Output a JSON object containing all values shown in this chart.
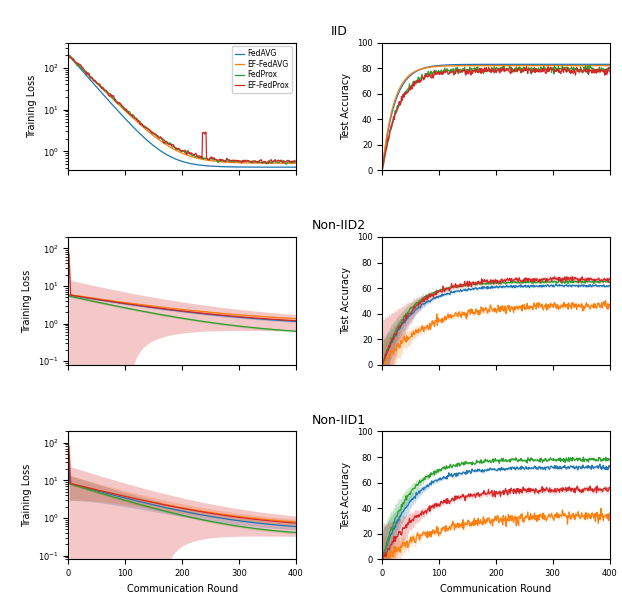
{
  "titles": [
    "IID",
    "Non-IID2",
    "Non-IID1"
  ],
  "legend_labels": [
    "FedAVG",
    "EF-FedAVG",
    "FedProx",
    "EF-FedProx"
  ],
  "colors": {
    "FedAVG": "#1f77b4",
    "EF-FedAVG": "#ff7f0e",
    "FedProx": "#2ca02c",
    "EF-FedProx": "#d62728"
  },
  "x_max": 400,
  "xlabel": "Communication Round",
  "ylabel_loss": "Training Loss",
  "ylabel_acc": "Test Accuracy",
  "iid_loss_ylim": [
    0.35,
    400
  ],
  "noniid2_loss_ylim": [
    0.08,
    200
  ],
  "noniid1_loss_ylim": [
    0.08,
    200
  ],
  "iid_acc_ylim": [
    0,
    100
  ],
  "noniid2_acc_ylim": [
    0,
    100
  ],
  "noniid1_acc_ylim": [
    0,
    100
  ],
  "seed": 42
}
